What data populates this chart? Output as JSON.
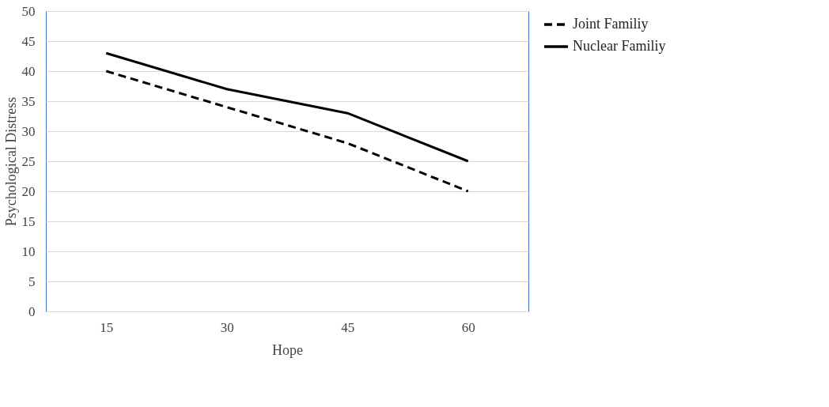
{
  "chart_data": {
    "type": "line",
    "xlabel": "Hope",
    "ylabel": "Psychological Distress",
    "categories": [
      "15",
      "30",
      "45",
      "60"
    ],
    "series": [
      {
        "name": "Joint Familiy",
        "color": "#000000",
        "line_style": "dashed",
        "values": [
          40,
          34,
          28,
          20
        ]
      },
      {
        "name": "Nuclear Familiy",
        "color": "#000000",
        "line_style": "solid",
        "values": [
          43,
          37,
          33,
          25
        ]
      }
    ],
    "ylim": [
      0,
      50
    ],
    "yticks": [
      0,
      5,
      10,
      15,
      20,
      25,
      30,
      35,
      40,
      45,
      50
    ],
    "grid": "y",
    "legend": "right",
    "marker": "none"
  }
}
